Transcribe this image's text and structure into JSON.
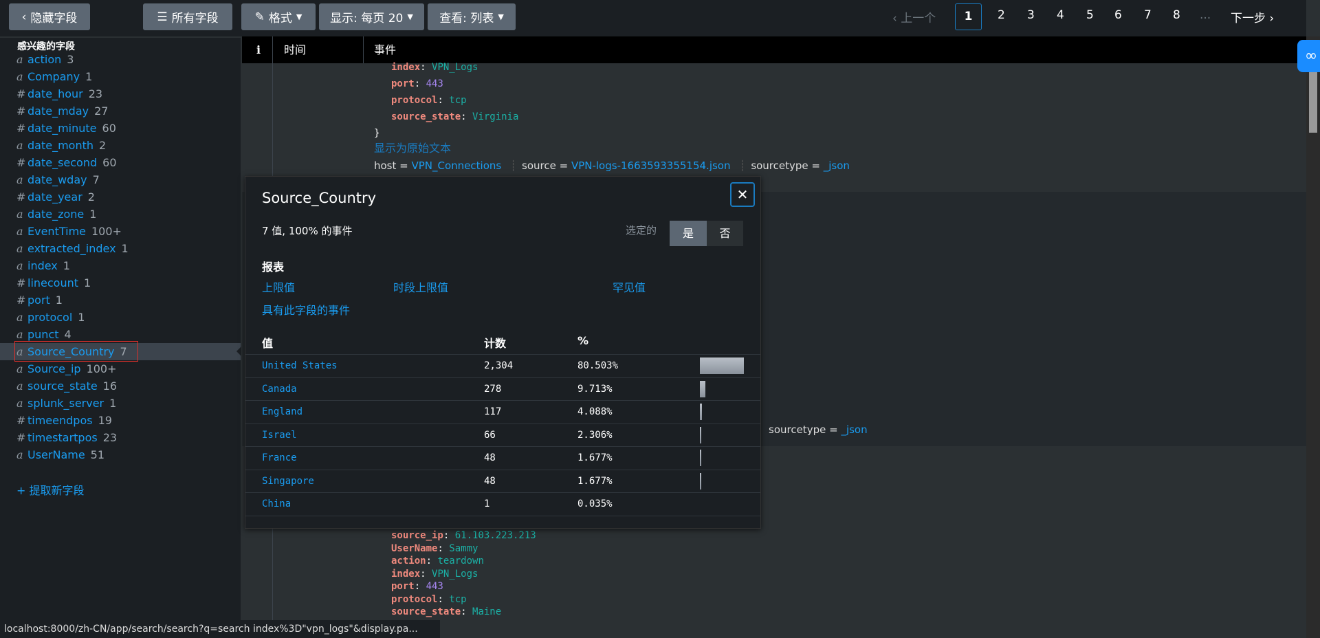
{
  "toolbar": {
    "hide_fields": "隐藏字段",
    "all_fields": "所有字段",
    "format": "格式",
    "display": "显示: 每页 20",
    "view": "查看: 列表"
  },
  "pagination": {
    "prev": "上一个",
    "pages": [
      "1",
      "2",
      "3",
      "4",
      "5",
      "6",
      "7",
      "8"
    ],
    "ellipsis": "...",
    "next": "下一步",
    "current": "1"
  },
  "sidebar": {
    "title": "感兴趣的字段",
    "fields": [
      {
        "type": "a",
        "name": "action",
        "count": "3"
      },
      {
        "type": "a",
        "name": "Company",
        "count": "1"
      },
      {
        "type": "#",
        "name": "date_hour",
        "count": "23"
      },
      {
        "type": "#",
        "name": "date_mday",
        "count": "27"
      },
      {
        "type": "#",
        "name": "date_minute",
        "count": "60"
      },
      {
        "type": "a",
        "name": "date_month",
        "count": "2"
      },
      {
        "type": "#",
        "name": "date_second",
        "count": "60"
      },
      {
        "type": "a",
        "name": "date_wday",
        "count": "7"
      },
      {
        "type": "#",
        "name": "date_year",
        "count": "2"
      },
      {
        "type": "a",
        "name": "date_zone",
        "count": "1"
      },
      {
        "type": "a",
        "name": "EventTime",
        "count": "100+"
      },
      {
        "type": "a",
        "name": "extracted_index",
        "count": "1"
      },
      {
        "type": "a",
        "name": "index",
        "count": "1"
      },
      {
        "type": "#",
        "name": "linecount",
        "count": "1"
      },
      {
        "type": "#",
        "name": "port",
        "count": "1"
      },
      {
        "type": "a",
        "name": "protocol",
        "count": "1"
      },
      {
        "type": "a",
        "name": "punct",
        "count": "4"
      },
      {
        "type": "a",
        "name": "Source_Country",
        "count": "7",
        "selected": true
      },
      {
        "type": "a",
        "name": "Source_ip",
        "count": "100+"
      },
      {
        "type": "a",
        "name": "source_state",
        "count": "16"
      },
      {
        "type": "a",
        "name": "splunk_server",
        "count": "1"
      },
      {
        "type": "#",
        "name": "timeendpos",
        "count": "19"
      },
      {
        "type": "#",
        "name": "timestartpos",
        "count": "23"
      },
      {
        "type": "a",
        "name": "UserName",
        "count": "51"
      }
    ],
    "extract": "+ 提取新字段"
  },
  "table": {
    "col_i": "i",
    "col_time": "时间",
    "col_event": "事件"
  },
  "event1": {
    "lines": [
      [
        "index",
        "VPN_Logs",
        "v"
      ],
      [
        "port",
        "443",
        "num"
      ],
      [
        "protocol",
        "tcp",
        "v"
      ],
      [
        "source_state",
        "Virginia",
        "v"
      ]
    ],
    "close": "}",
    "raw": "显示为原始文本",
    "host_label": "host = ",
    "host": "VPN_Connections",
    "source_label": "source = ",
    "source": "VPN-logs-1663593355154.json",
    "sourcetype_label": "sourcetype = ",
    "sourcetype": "_json"
  },
  "event2": {
    "sourcetype_label": "sourcetype = ",
    "sourcetype": "_json",
    "lines": [
      [
        "source_ip",
        "61.103.223.213",
        "v"
      ],
      [
        "UserName",
        "Sammy",
        "v"
      ],
      [
        "action",
        "teardown",
        "v"
      ],
      [
        "index",
        "VPN_Logs",
        "v"
      ],
      [
        "port",
        "443",
        "num"
      ],
      [
        "protocol",
        "tcp",
        "v"
      ],
      [
        "source_state",
        "Maine",
        "v"
      ]
    ]
  },
  "popup": {
    "title": "Source_Country",
    "summary": "7 值, 100% 的事件",
    "selected_label": "选定的",
    "yes": "是",
    "no": "否",
    "reports_title": "报表",
    "links": [
      "上限值",
      "时段上限值",
      "罕见值",
      "具有此字段的事件"
    ],
    "headers": [
      "值",
      "计数",
      "%"
    ],
    "rows": [
      {
        "value": "United States",
        "count": "2,304",
        "pct": "80.503%",
        "frac": 80.503
      },
      {
        "value": "Canada",
        "count": "278",
        "pct": "9.713%",
        "frac": 9.713
      },
      {
        "value": "England",
        "count": "117",
        "pct": "4.088%",
        "frac": 4.088
      },
      {
        "value": "Israel",
        "count": "66",
        "pct": "2.306%",
        "frac": 2.306
      },
      {
        "value": "France",
        "count": "48",
        "pct": "1.677%",
        "frac": 1.677
      },
      {
        "value": "Singapore",
        "count": "48",
        "pct": "1.677%",
        "frac": 1.677
      },
      {
        "value": "China",
        "count": "1",
        "pct": "0.035%",
        "frac": 0.035
      }
    ]
  },
  "status_url": "localhost:8000/zh-CN/app/search/search?q=search index%3D\"vpn_logs\"&display.pa...",
  "colors": {
    "accent": "#1a9cf0",
    "key": "#f08a7e",
    "value": "#1bb1a6",
    "number": "#a686f0"
  }
}
